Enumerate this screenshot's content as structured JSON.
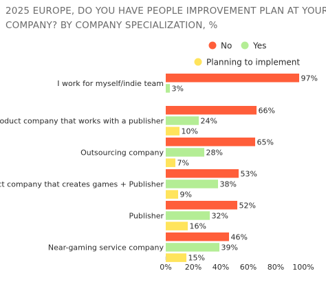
{
  "chart_data": {
    "type": "bar",
    "orientation": "horizontal",
    "title_lines": [
      "2025 EUROPE, DO YOU HAVE PEOPLE IMPROVEMENT PLAN AT YOUR",
      "COMPANY? BY COMPANY SPECIALIZATION, %"
    ],
    "categories": [
      "I work for myself/indie team",
      "A product company that works with a publisher",
      "Outsourcing company",
      "A product company that creates games + Publisher",
      "Publisher",
      "Near-gaming service company"
    ],
    "series": [
      {
        "name": "No",
        "color": "#ff5e3a",
        "values": [
          97,
          66,
          65,
          53,
          52,
          46
        ]
      },
      {
        "name": "Yes",
        "color": "#b4ed95",
        "values": [
          3,
          24,
          28,
          38,
          32,
          39
        ]
      },
      {
        "name": "Planning to implement",
        "color": "#ffe45c",
        "values": [
          null,
          10,
          7,
          9,
          16,
          15
        ]
      }
    ],
    "value_suffix": "%",
    "x_ticks": [
      "0%",
      "20%",
      "40%",
      "60%",
      "80%",
      "100%"
    ],
    "xlim": [
      0,
      100
    ],
    "legend_position": "top-right",
    "grid": false
  }
}
